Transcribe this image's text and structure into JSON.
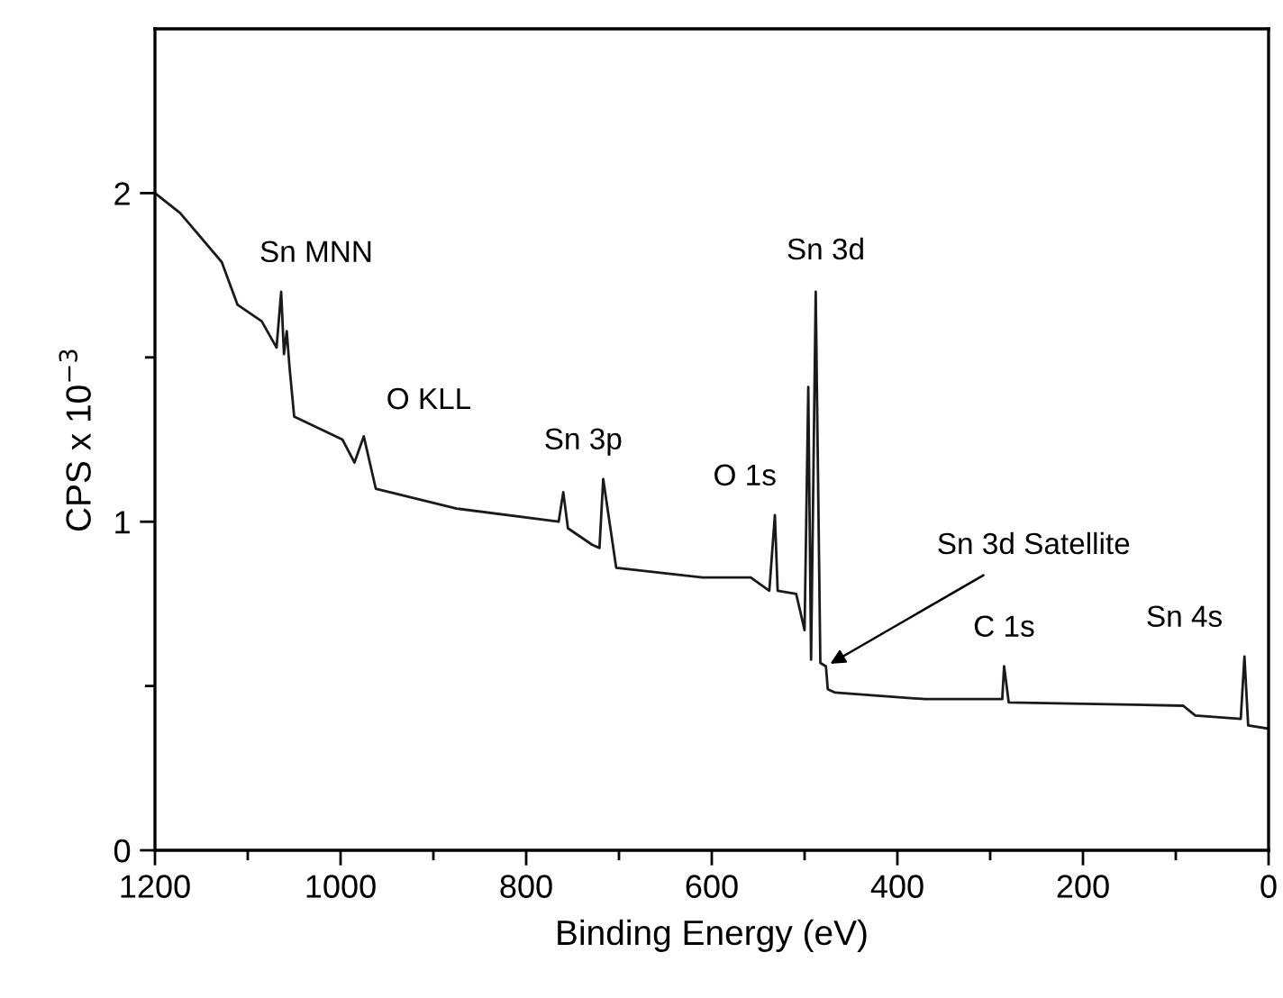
{
  "chart_data": {
    "type": "line",
    "xlabel": "Binding Energy (eV)",
    "ylabel": "CPS x 10$^{−3}$",
    "x": [
      1200,
      1173,
      1128,
      1111,
      1085,
      1069,
      1064,
      1061,
      1058,
      1055,
      1050,
      998,
      985,
      975,
      962,
      875,
      765,
      760,
      755,
      729,
      721,
      717,
      703,
      610,
      558,
      538,
      532,
      529,
      509,
      500,
      496,
      493,
      488,
      483,
      477,
      475,
      467,
      370,
      287,
      285,
      280,
      92,
      79,
      30,
      26,
      22,
      0
    ],
    "series": [
      {
        "color": "#1a1a1a",
        "values": [
          2.0,
          1.94,
          1.79,
          1.66,
          1.61,
          1.53,
          1.7,
          1.51,
          1.58,
          1.47,
          1.32,
          1.25,
          1.18,
          1.26,
          1.1,
          1.04,
          1.0,
          1.09,
          0.98,
          0.93,
          0.92,
          1.13,
          0.86,
          0.83,
          0.83,
          0.79,
          1.02,
          0.79,
          0.78,
          0.67,
          1.41,
          0.58,
          1.7,
          0.57,
          0.56,
          0.49,
          0.48,
          0.46,
          0.46,
          0.56,
          0.45,
          0.44,
          0.41,
          0.4,
          0.59,
          0.38,
          0.37
        ]
      }
    ],
    "xlim": [
      1200,
      0
    ],
    "xticks": [
      1200,
      {
        "value": 1100,
        "label": null
      },
      1000,
      {
        "value": 900,
        "label": null
      },
      800,
      {
        "value": 700,
        "label": null
      },
      600,
      {
        "value": 500,
        "label": null
      },
      400,
      {
        "value": 300,
        "label": null
      },
      200,
      {
        "value": 100,
        "label": null
      },
      0
    ],
    "ylim": [
      0,
      2.5
    ],
    "yticks": [
      0,
      {
        "value": 0.5,
        "label": null
      },
      1,
      {
        "value": 1.5,
        "label": null
      },
      2
    ],
    "grid": false,
    "legend": false,
    "marker": "none",
    "line_style": "solid",
    "annotations": [
      {
        "text": "Sn MNN",
        "x": 1064,
        "y": 1.7
      },
      {
        "text": "O KLL",
        "x": 975,
        "y": 1.26
      },
      {
        "text": "Sn 3p",
        "x": 717,
        "y": 1.13
      },
      {
        "text": "O 1s",
        "x": 532,
        "y": 1.02
      },
      {
        "text": "Sn 3d",
        "x": 488,
        "y": 1.7
      },
      {
        "text": "Sn 3d Satellite",
        "x": 477,
        "y": 0.56
      },
      {
        "text": "C 1s",
        "x": 285,
        "y": 0.56
      },
      {
        "text": "Sn 4s",
        "x": 26,
        "y": 0.59
      }
    ]
  }
}
